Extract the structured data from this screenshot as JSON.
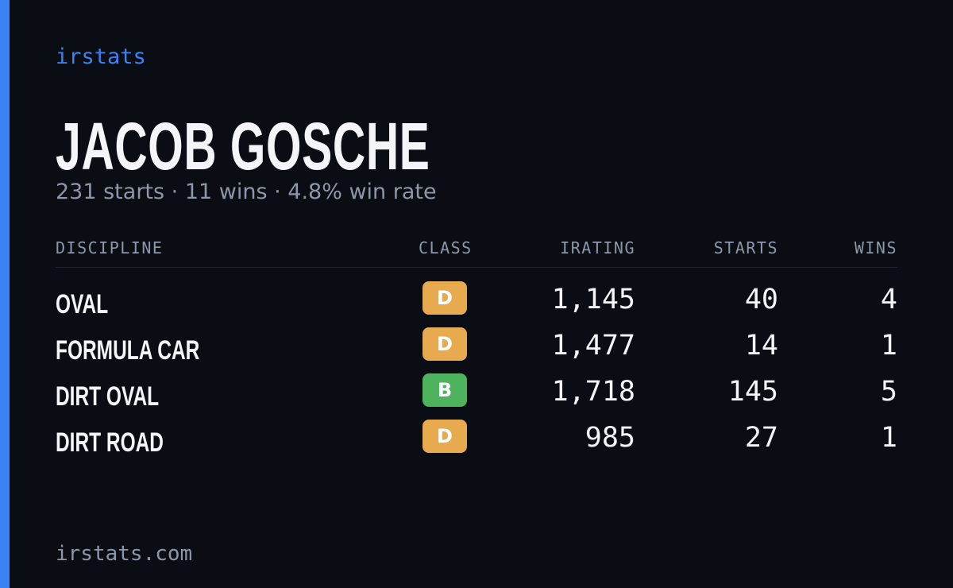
{
  "brand": "irstats",
  "name": "JACOB GOSCHE",
  "summary": "231 starts · 11 wins · 4.8% win rate",
  "table": {
    "columns": [
      "DISCIPLINE",
      "CLASS",
      "IRATING",
      "STARTS",
      "WINS"
    ],
    "rows": [
      [
        "OVAL",
        "D",
        "1,145",
        "40",
        "4"
      ],
      [
        "FORMULA CAR",
        "D",
        "1,477",
        "14",
        "1"
      ],
      [
        "DIRT OVAL",
        "B",
        "1,718",
        "145",
        "5"
      ],
      [
        "DIRT ROAD",
        "D",
        "985",
        "27",
        "1"
      ]
    ],
    "badge_colors": [
      "#e8aa4e",
      "#e8aa4e",
      "#4fb25c",
      "#e8aa4e"
    ]
  },
  "footer": "irstats.com"
}
